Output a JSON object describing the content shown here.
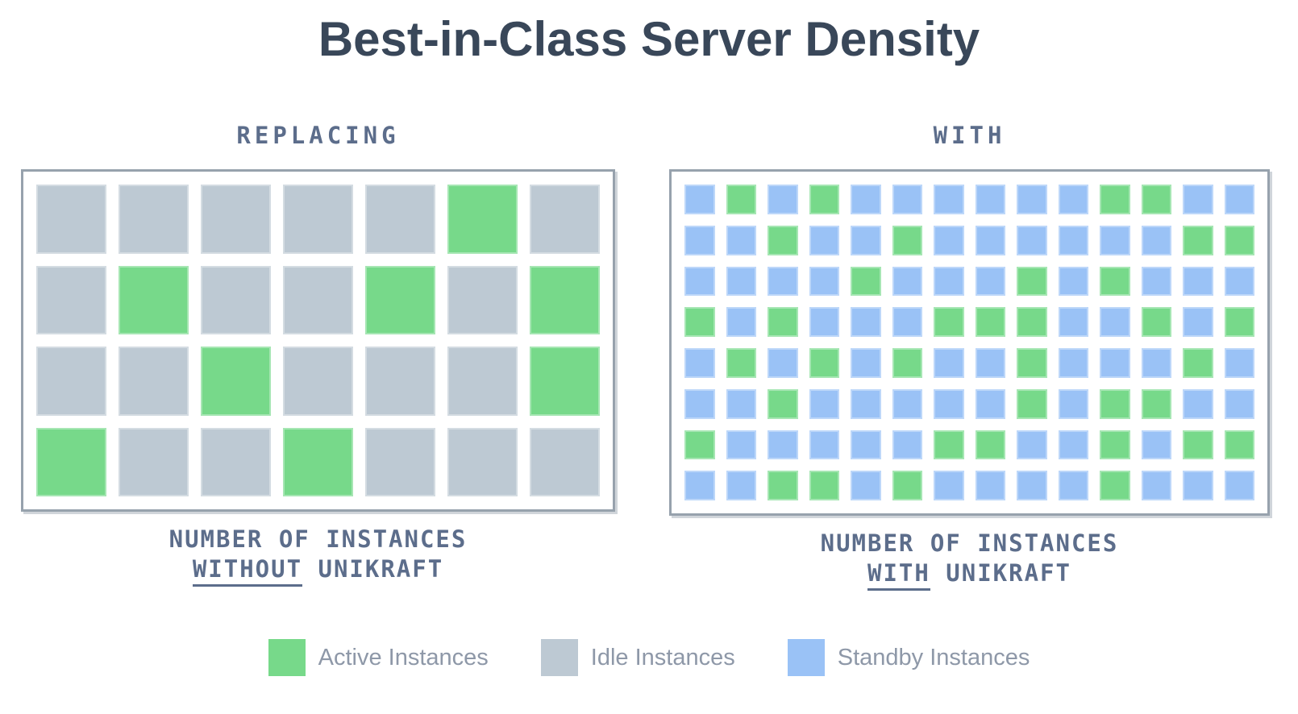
{
  "title": "Best-in-Class Server Density",
  "colors": {
    "active": "#77d98a",
    "idle": "#bdc9d3",
    "standby": "#9ac2f6",
    "title_text": "#394759",
    "heading_text": "#5c6d8b",
    "legend_text": "#8e98a8",
    "box_border": "#97a2ad"
  },
  "cell_kinds": {
    "G": "active",
    "X": "idle",
    "B": "standby"
  },
  "panels": [
    {
      "header": "REPLACING",
      "caption_line1": "NUMBER OF INSTANCES",
      "caption_underlined": "WITHOUT",
      "caption_rest": " UNIKRAFT",
      "columns": 7,
      "rows": [
        "XXXXXGX",
        "XGXXGXG",
        "XXGXXXG",
        "GXXGXXX"
      ]
    },
    {
      "header": "WITH",
      "caption_line1": "NUMBER OF INSTANCES",
      "caption_underlined": "WITH",
      "caption_rest": " UNIKRAFT",
      "columns": 14,
      "rows": [
        "BGBGBBBBBBGGBB",
        "BBGBBGBBBBBBGG",
        "BBBBGBBBGBGBBB",
        "GBGBBBGGGBBGBG",
        "BGBGBGBBGBBBGB",
        "BBGBBBBBGBGGBB",
        "GBBBBBGGBBGBGG",
        "BBGGBGBBBBGBBB"
      ]
    }
  ],
  "legend": [
    {
      "label": "Active Instances",
      "kind": "active"
    },
    {
      "label": "Idle Instances",
      "kind": "idle"
    },
    {
      "label": "Standby Instances",
      "kind": "standby"
    }
  ]
}
